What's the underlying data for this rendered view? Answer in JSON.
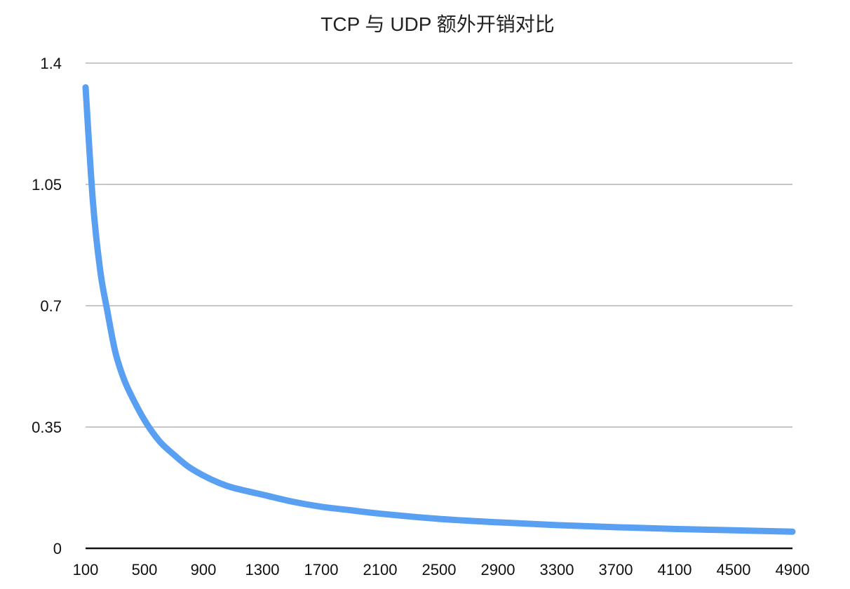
{
  "chart_data": {
    "type": "line",
    "title": "TCP 与 UDP 额外开销对比",
    "xlabel": "",
    "ylabel": "",
    "x_ticks": [
      "100",
      "500",
      "900",
      "1300",
      "1700",
      "2100",
      "2500",
      "2900",
      "3300",
      "3700",
      "4100",
      "4500",
      "4900"
    ],
    "y_ticks": [
      "0",
      "0.35",
      "0.7",
      "1.05",
      "1.4"
    ],
    "xlim": [
      100,
      4900
    ],
    "ylim": [
      0,
      1.4
    ],
    "grid": true,
    "series": [
      {
        "color": "#5aa0f2",
        "x": [
          100,
          150,
          200,
          250,
          300,
          350,
          400,
          500,
          600,
          700,
          800,
          900,
          1000,
          1100,
          1300,
          1500,
          1700,
          1900,
          2100,
          2500,
          2900,
          3300,
          3700,
          4100,
          4500,
          4900
        ],
        "y": [
          1.33,
          1.0,
          0.8,
          0.68,
          0.57,
          0.5,
          0.45,
          0.37,
          0.31,
          0.27,
          0.235,
          0.21,
          0.19,
          0.175,
          0.155,
          0.135,
          0.12,
          0.11,
          0.1,
          0.085,
          0.075,
          0.067,
          0.061,
          0.056,
          0.052,
          0.048
        ]
      }
    ]
  }
}
